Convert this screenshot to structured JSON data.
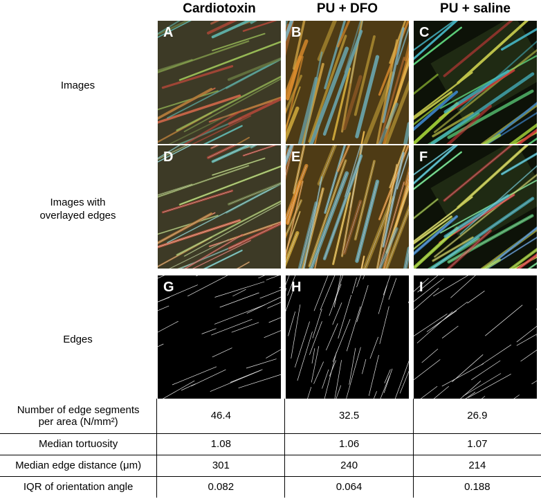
{
  "columns": [
    "Cardiotoxin",
    "PU + DFO",
    "PU + saline"
  ],
  "rows": [
    {
      "label_lines": [
        "Images"
      ]
    },
    {
      "label_lines": [
        "Images with",
        "overlayed edges"
      ]
    },
    {
      "label_lines": [
        "Edges"
      ]
    }
  ],
  "panel_letters": [
    "A",
    "B",
    "C",
    "D",
    "E",
    "F",
    "G",
    "H",
    "I"
  ],
  "metrics": [
    {
      "label_lines": [
        "Number of edge segments",
        "per area (N/mm²)"
      ],
      "values": [
        "46.4",
        "32.5",
        "26.9"
      ]
    },
    {
      "label_lines": [
        "Median tortuosity"
      ],
      "values": [
        "1.08",
        "1.06",
        "1.07"
      ]
    },
    {
      "label_lines": [
        "Median edge distance (μm)"
      ],
      "values": [
        "301",
        "240",
        "214"
      ]
    },
    {
      "label_lines": [
        "IQR of orientation angle"
      ],
      "values": [
        "0.082",
        "0.064",
        "0.188"
      ]
    }
  ]
}
